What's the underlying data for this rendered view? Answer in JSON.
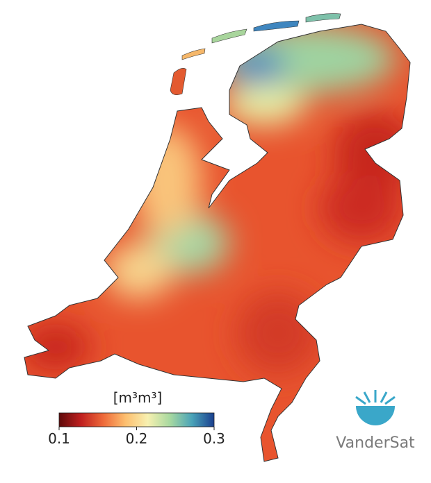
{
  "map": {
    "colorbar": {
      "label": "[m³m³]",
      "range": [
        0.1,
        0.3
      ],
      "ticks": [
        0.1,
        0.2,
        0.3
      ],
      "colors": [
        "#5e0a0a",
        "#c0201f",
        "#ee6a3a",
        "#fdbf6f",
        "#f7f0b0",
        "#a8d9a0",
        "#4aa3b8",
        "#1a3f8f"
      ]
    },
    "logo": {
      "text": "VanderSat"
    }
  }
}
